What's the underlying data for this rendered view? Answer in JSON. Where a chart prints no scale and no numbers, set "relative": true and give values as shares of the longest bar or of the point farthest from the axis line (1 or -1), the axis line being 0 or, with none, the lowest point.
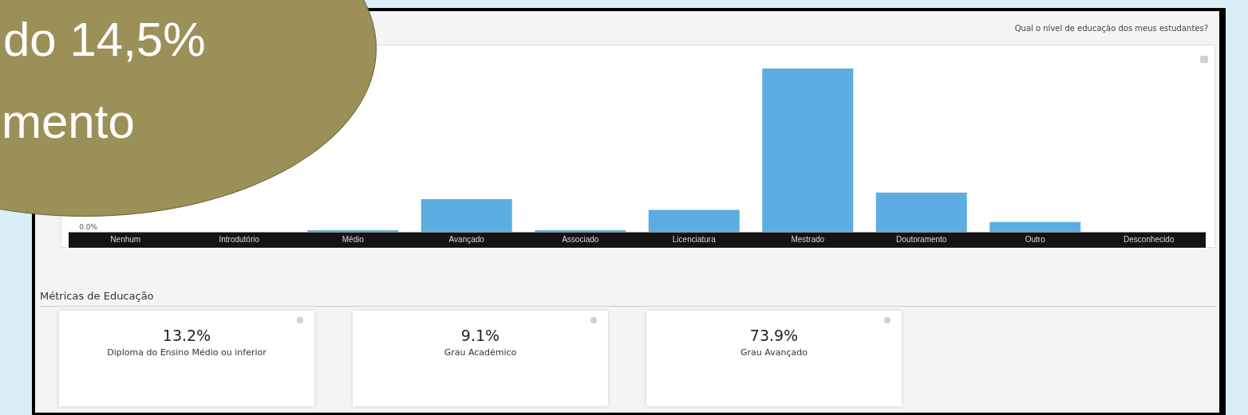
{
  "chart_data": [
    {
      "type": "bar",
      "title": "Qual o nível de educação dos meus estudantes?",
      "relative": true,
      "color": "#5dade2",
      "legend": false,
      "grid": false,
      "categories": [
        "Nenhum",
        "Introdutório",
        "Médio",
        "Avançado",
        "Associado",
        "Licenciatura",
        "Mestrado",
        "Doutoramento",
        "Outro",
        "Desconhecido"
      ],
      "values": [
        0,
        0,
        0.01,
        0.2,
        0.01,
        0.134,
        1,
        0.24,
        0.06,
        0
      ],
      "annotations": [
        "0.0%",
        "do 14,5%",
        "mento"
      ]
    },
    {
      "type": "other",
      "title": "Métricas de Educação",
      "annotations": [
        "13.2%",
        "Diploma do Ensino Médio ou inferior",
        "9.1%",
        "Grau Académico",
        "73.9%",
        "Grau Avançado"
      ]
    }
  ]
}
